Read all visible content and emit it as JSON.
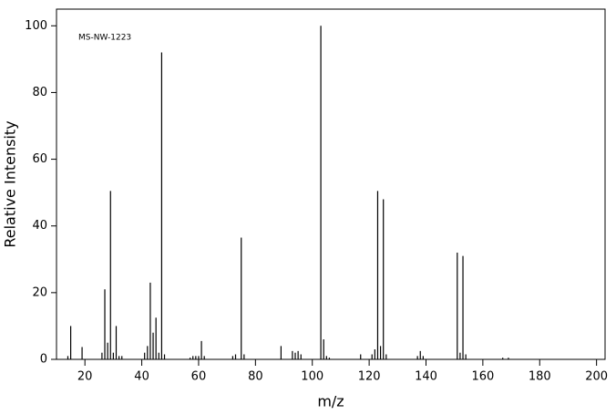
{
  "chart_data": {
    "type": "stem",
    "annotation": "MS-NW-1223",
    "x_label": "m/z",
    "y_label": "Relative Intensity",
    "x": [
      14,
      15,
      19,
      26,
      27,
      28,
      29,
      30,
      31,
      32,
      33,
      41,
      42,
      43,
      44,
      45,
      46,
      47,
      48,
      57,
      58,
      59,
      60,
      61,
      62,
      72,
      73,
      75,
      76,
      89,
      93,
      94,
      95,
      96,
      103,
      104,
      105,
      106,
      117,
      121,
      122,
      123,
      124,
      125,
      126,
      137,
      138,
      139,
      151,
      152,
      153,
      154,
      167,
      169
    ],
    "values": [
      1,
      10,
      3.7,
      2,
      21,
      5,
      50.5,
      2,
      10,
      1,
      1,
      2,
      4,
      23,
      8,
      12.5,
      2,
      92,
      1.5,
      0.5,
      1,
      1,
      1,
      5.5,
      1,
      1,
      1.5,
      36.5,
      1.5,
      4,
      2.5,
      2,
      2.5,
      1.5,
      100,
      6,
      1,
      0.5,
      1.5,
      1.5,
      3,
      50.5,
      4,
      48,
      1.5,
      1,
      2.5,
      1,
      32,
      2,
      31,
      1.5,
      0.5,
      0.5
    ],
    "color": "#000000",
    "xlim": [
      10,
      203
    ],
    "ylim": [
      0,
      105
    ],
    "xticks": [
      20,
      40,
      60,
      80,
      100,
      120,
      140,
      160,
      180,
      200
    ],
    "yticks": [
      0,
      20,
      40,
      60,
      80,
      100
    ]
  }
}
